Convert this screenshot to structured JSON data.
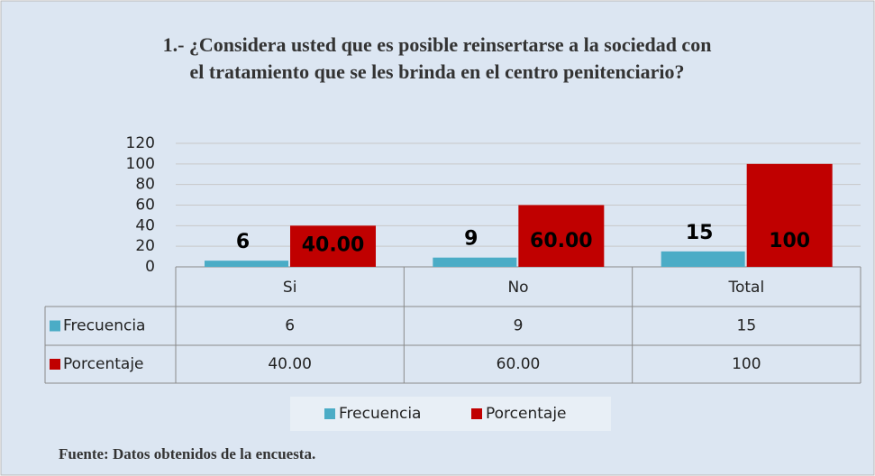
{
  "chart_data": {
    "type": "bar",
    "title": "1.- ¿Considera usted que es posible reinsertarse a la sociedad con el tratamiento que se les brinda en el centro penitenciario?",
    "categories": [
      "Si",
      "No",
      "Total"
    ],
    "series": [
      {
        "name": "Frecuencia",
        "color": "#4bacc6",
        "values": [
          6,
          9,
          15
        ]
      },
      {
        "name": "Porcentaje",
        "color": "#c00000",
        "values": [
          40,
          60,
          100
        ],
        "value_labels": [
          "40.00",
          "60.00",
          "100"
        ]
      }
    ],
    "ylim": [
      0,
      120
    ],
    "yticks": [
      0,
      20,
      40,
      60,
      80,
      100,
      120
    ],
    "grid": true,
    "legend": "bottom",
    "source": "Fuente: Datos obtenidos de la encuesta."
  }
}
